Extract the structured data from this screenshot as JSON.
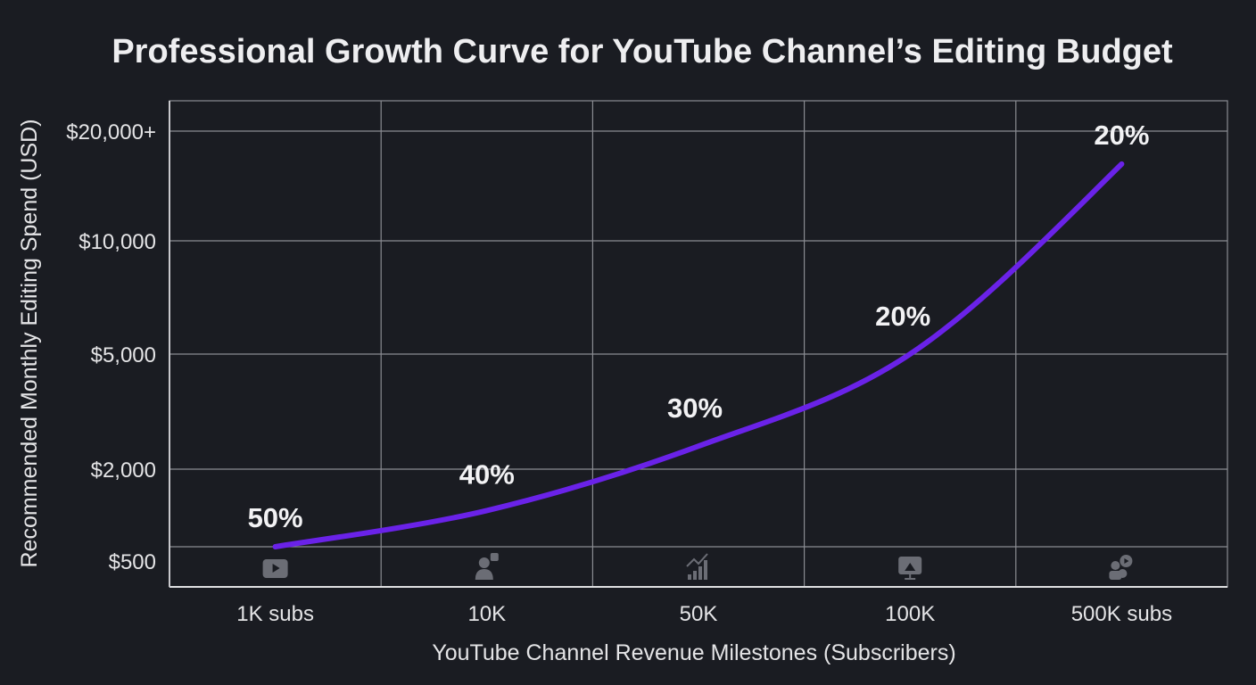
{
  "chart_data": {
    "type": "line",
    "title": "Professional Growth Curve for YouTube Channel’s Editing Budget",
    "xlabel": "YouTube Channel Revenue Milestones (Subscribers)",
    "ylabel": "Recommended Monthly Editing Spend (USD)",
    "categories": [
      "1K subs",
      "10K",
      "50K",
      "100K",
      "500K subs"
    ],
    "y_ticks": [
      {
        "label": "$500",
        "value": 500
      },
      {
        "label": "$2,000",
        "value": 2000
      },
      {
        "label": "$5,000",
        "value": 5000
      },
      {
        "label": "$10,000",
        "value": 10000
      },
      {
        "label": "$20,000+",
        "value": 20000
      }
    ],
    "y_scale": "non-linear (categorical tick spacing)",
    "series": [
      {
        "values": [
          500,
          1200,
          2600,
          5000,
          17000
        ],
        "data_labels": [
          "50%",
          "40%",
          "30%",
          "20%",
          "20%"
        ],
        "color": "#6a22e8"
      }
    ],
    "category_icons": [
      "video-play-icon",
      "user-add-icon",
      "growth-bars-icon",
      "monitor-analytics-icon",
      "creator-team-icon"
    ],
    "grid": true,
    "background": "#1a1c22"
  }
}
